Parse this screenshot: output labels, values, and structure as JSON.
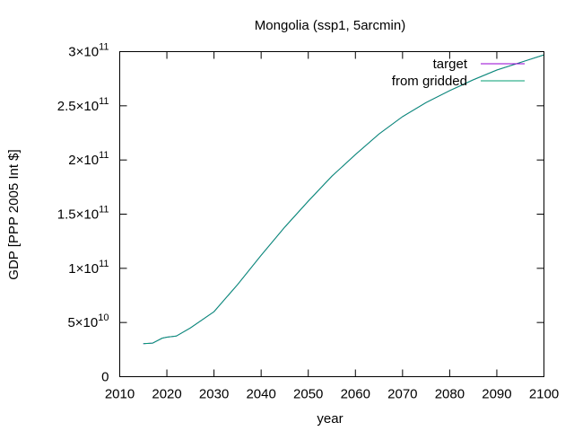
{
  "chart_data": {
    "type": "line",
    "title": "Mongolia (ssp1, 5arcmin)",
    "xlabel": "year",
    "ylabel": "GDP [PPP 2005 Int $]",
    "xlim": [
      2010,
      2100
    ],
    "ylim": [
      0,
      300000000000
    ],
    "x_ticks": [
      {
        "value": 2010,
        "label": "2010"
      },
      {
        "value": 2020,
        "label": "2020"
      },
      {
        "value": 2030,
        "label": "2030"
      },
      {
        "value": 2040,
        "label": "2040"
      },
      {
        "value": 2050,
        "label": "2050"
      },
      {
        "value": 2060,
        "label": "2060"
      },
      {
        "value": 2070,
        "label": "2070"
      },
      {
        "value": 2080,
        "label": "2080"
      },
      {
        "value": 2090,
        "label": "2090"
      },
      {
        "value": 2100,
        "label": "2100"
      }
    ],
    "y_ticks": [
      {
        "value": 0,
        "label": "0",
        "exp": ""
      },
      {
        "value": 50000000000,
        "label": "5×10",
        "exp": "10"
      },
      {
        "value": 100000000000,
        "label": "1×10",
        "exp": "11"
      },
      {
        "value": 150000000000,
        "label": "1.5×10",
        "exp": "11"
      },
      {
        "value": 200000000000,
        "label": "2×10",
        "exp": "11"
      },
      {
        "value": 250000000000,
        "label": "2.5×10",
        "exp": "11"
      },
      {
        "value": 300000000000,
        "label": "3×10",
        "exp": "11"
      }
    ],
    "grid": false,
    "legend_position": "top-right",
    "series": [
      {
        "name": "target",
        "color": "#9400d3",
        "x": [
          2015,
          2017,
          2019,
          2020,
          2022,
          2025,
          2030,
          2035,
          2040,
          2045,
          2050,
          2055,
          2060,
          2065,
          2070,
          2075,
          2080,
          2085,
          2090,
          2095,
          2100
        ],
        "y": [
          30500000000,
          31000000000,
          35500000000,
          36500000000,
          37500000000,
          45000000000,
          60000000000,
          85000000000,
          112000000000,
          138000000000,
          162000000000,
          185000000000,
          205000000000,
          224000000000,
          240000000000,
          253000000000,
          264000000000,
          274000000000,
          283000000000,
          290000000000,
          297000000000
        ]
      },
      {
        "name": "from gridded",
        "color": "#009e73",
        "x": [
          2015,
          2017,
          2019,
          2020,
          2022,
          2025,
          2030,
          2035,
          2040,
          2045,
          2050,
          2055,
          2060,
          2065,
          2070,
          2075,
          2080,
          2085,
          2090,
          2095,
          2100
        ],
        "y": [
          30500000000,
          31000000000,
          35500000000,
          36500000000,
          37500000000,
          45000000000,
          60000000000,
          85000000000,
          112000000000,
          138000000000,
          162000000000,
          185000000000,
          205000000000,
          224000000000,
          240000000000,
          253000000000,
          264000000000,
          274000000000,
          283000000000,
          290000000000,
          297000000000
        ]
      }
    ]
  }
}
